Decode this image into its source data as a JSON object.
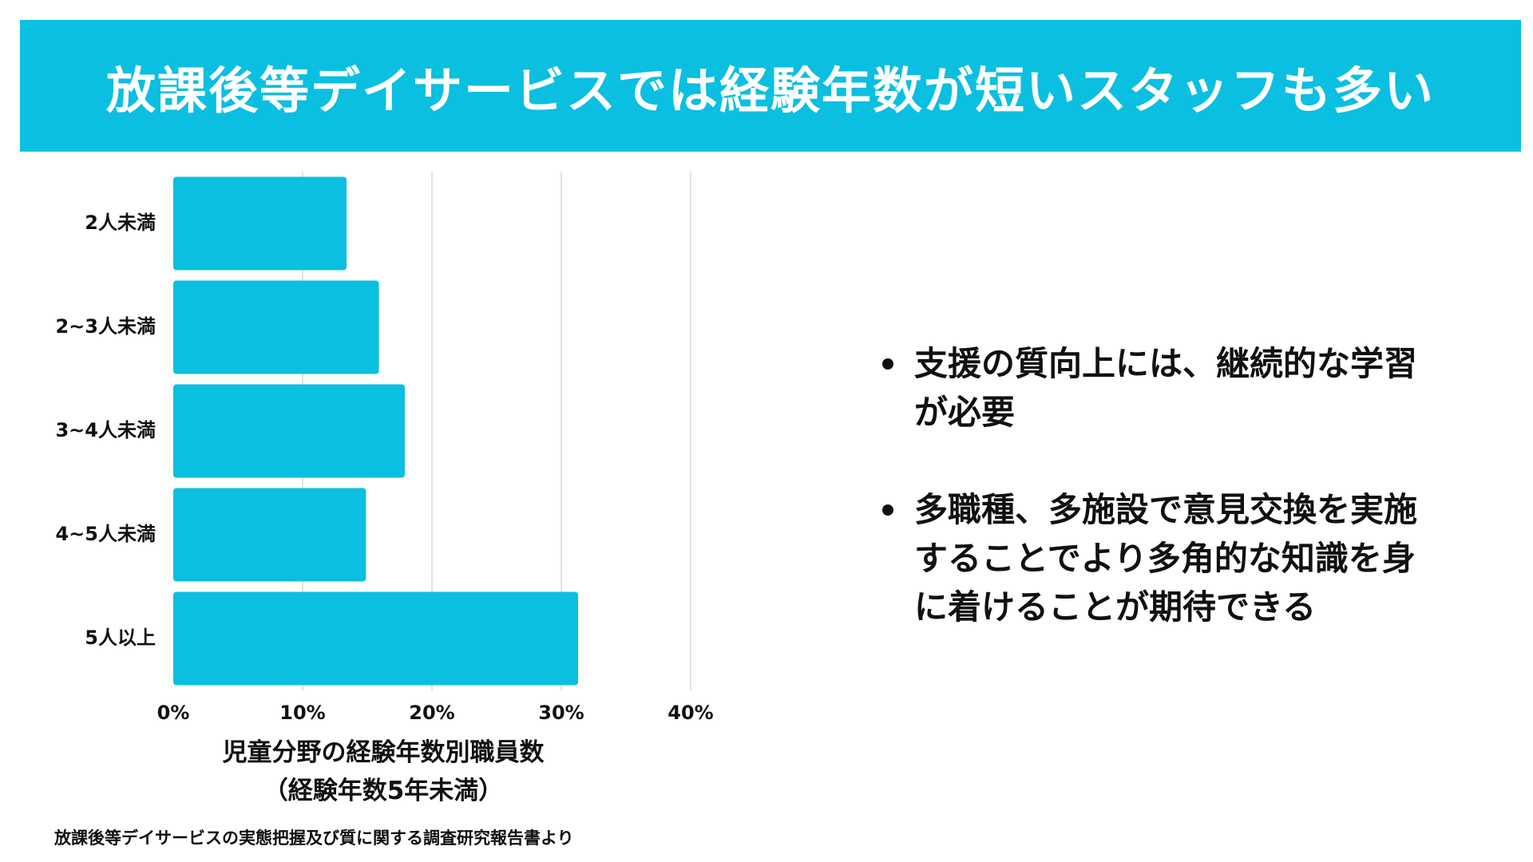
{
  "title": "放課後等デイサービスでは経験年数が短いスタッフも多い",
  "colors": {
    "banner": "#0bbfe0",
    "bar": "#0bbfe0",
    "gridline": "#d9d9d9",
    "text": "#111111"
  },
  "chart_data": {
    "type": "bar",
    "orientation": "horizontal",
    "categories": [
      "2人未満",
      "2~3人未満",
      "3~4人未満",
      "4~5人未満",
      "5人以上"
    ],
    "values": [
      13.4,
      15.9,
      17.9,
      14.9,
      31.3
    ],
    "xlim": [
      0,
      40
    ],
    "xticks": [
      "0%",
      "10%",
      "20%",
      "30%",
      "40%"
    ],
    "xtick_values": [
      0,
      10,
      20,
      30,
      40
    ],
    "unit": "%",
    "grid": true,
    "xlabel": "児童分野の経験年数別職員数",
    "xlabel_sub": "（経験年数5年未満）"
  },
  "source": "放課後等デイサービスの実態把握及び質に関する調査研究報告書より",
  "bullets": [
    "支援の質向上には、継続的な学習が必要",
    "多職種、多施設で意見交換を実施することでより多角的な知識を身に着けることが期待できる"
  ]
}
